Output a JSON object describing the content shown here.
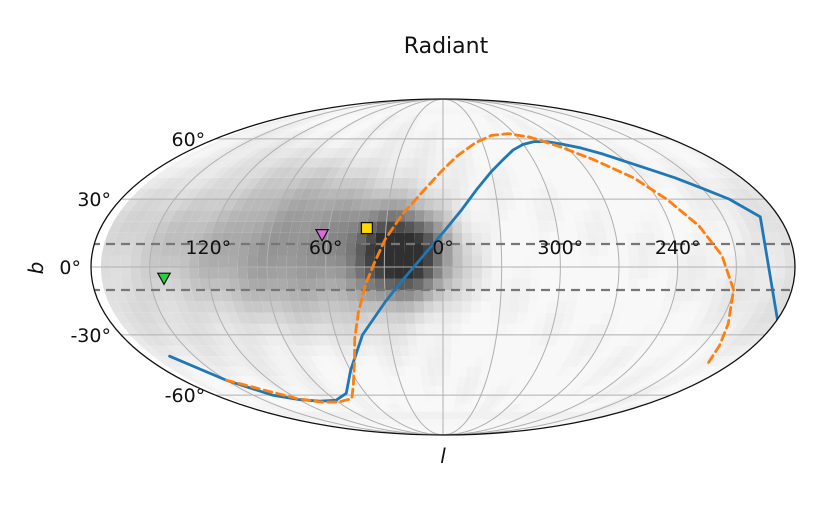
{
  "chart_data": {
    "type": "scatter",
    "projection": "mollweide-galactic",
    "title": "Radiant",
    "xlabel": "l",
    "ylabel": "b",
    "x_ticks": [
      "120°",
      "60°",
      "0°",
      "300°",
      "240°"
    ],
    "y_ticks": [
      "60°",
      "30°",
      "0°",
      "-30°",
      "-60°"
    ],
    "grid": true,
    "background_density": {
      "type": "heatmap",
      "colormap": "greys",
      "peak": {
        "l": 20,
        "b": 5
      },
      "notes_hidden": true,
      "components": [
        {
          "l": 20,
          "b": 5,
          "sigma_l": 16,
          "sigma_b": 13,
          "weight": 1.0
        },
        {
          "l": 60,
          "b": 10,
          "sigma_l": 35,
          "sigma_b": 22,
          "weight": 0.42
        },
        {
          "l": 110,
          "b": 10,
          "sigma_l": 38,
          "sigma_b": 25,
          "weight": 0.22
        },
        {
          "l": 170,
          "b": 0,
          "sigma_l": 35,
          "sigma_b": 35,
          "weight": 0.1
        }
      ]
    },
    "reference_lines": {
      "galactic_band": [
        10,
        -10
      ],
      "color": "#777777",
      "style": "dashed"
    },
    "series": [
      {
        "type": "line",
        "color": "#1f77b4",
        "style": "solid",
        "points": [
          [
            180,
            -23
          ],
          [
            165,
            -40
          ],
          [
            150,
            -52
          ],
          [
            135,
            -60
          ],
          [
            120,
            -62.5
          ],
          [
            105,
            -63.5
          ],
          [
            90,
            -63
          ],
          [
            75,
            -59
          ],
          [
            60,
            -47
          ],
          [
            45,
            -30
          ],
          [
            30,
            -15
          ],
          [
            20,
            -5
          ],
          [
            10,
            5
          ],
          [
            0,
            15
          ],
          [
            -10,
            25
          ],
          [
            -20,
            35
          ],
          [
            -30,
            43
          ],
          [
            -40,
            49
          ],
          [
            -50,
            54
          ],
          [
            -60,
            57
          ],
          [
            -70,
            58.5
          ],
          [
            -80,
            58.5
          ],
          [
            -90,
            57
          ],
          [
            -100,
            55
          ],
          [
            -110,
            52
          ],
          [
            -120,
            48
          ],
          [
            -130,
            44
          ],
          [
            -140,
            40
          ],
          [
            -150,
            35
          ],
          [
            -160,
            30
          ],
          [
            -170,
            22
          ],
          [
            -180,
            -23
          ]
        ]
      },
      {
        "type": "line",
        "color": "#ff7f0e",
        "style": "dashed",
        "points": [
          [
            150,
            -52
          ],
          [
            135,
            -57
          ],
          [
            120,
            -62
          ],
          [
            105,
            -64
          ],
          [
            90,
            -64
          ],
          [
            75,
            -62
          ],
          [
            65,
            -55
          ],
          [
            55,
            -43
          ],
          [
            50,
            -32
          ],
          [
            45,
            -20
          ],
          [
            40,
            -8
          ],
          [
            35,
            2
          ],
          [
            30,
            12
          ],
          [
            22,
            23
          ],
          [
            10,
            35
          ],
          [
            0,
            44
          ],
          [
            -10,
            51
          ],
          [
            -25,
            58
          ],
          [
            -40,
            62
          ],
          [
            -55,
            63
          ],
          [
            -70,
            61
          ],
          [
            -85,
            56
          ],
          [
            -100,
            49
          ],
          [
            -115,
            40
          ],
          [
            -125,
            30
          ],
          [
            -135,
            18
          ],
          [
            -143,
            5
          ],
          [
            -150,
            -10
          ],
          [
            -155,
            -25
          ],
          [
            -160,
            -35
          ],
          [
            -165,
            -43
          ]
        ]
      }
    ],
    "markers": [
      {
        "l": 40,
        "b": 17,
        "shape": "square",
        "color": "#ffd700"
      },
      {
        "l": 63,
        "b": 14,
        "shape": "triangle-down",
        "color": "#e069e0"
      },
      {
        "l": 143,
        "b": -5,
        "shape": "triangle-down",
        "color": "#2ecc40"
      }
    ]
  }
}
